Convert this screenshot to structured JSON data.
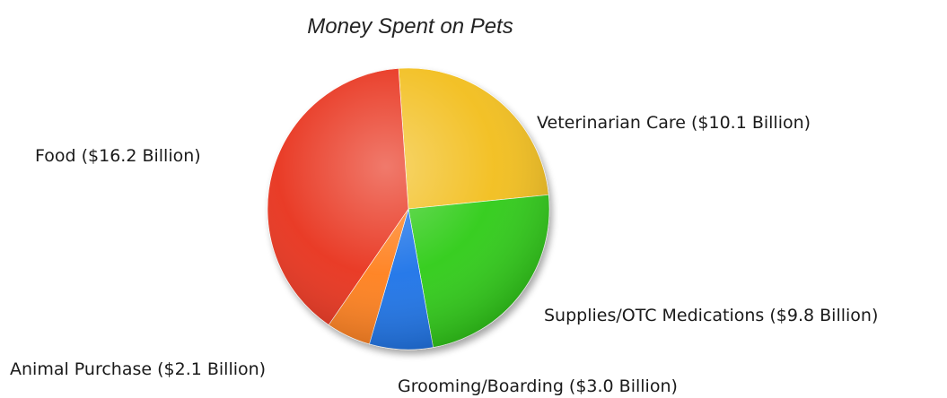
{
  "chart_data": {
    "type": "pie",
    "title": "Money Spent on Pets",
    "slices": [
      {
        "label": "Veterinarian Care ($10.1 Billion)",
        "value": 10.1,
        "color": "#f2be1e"
      },
      {
        "label": "Supplies/OTC Medications ($9.8 Billion)",
        "value": 9.8,
        "color": "#2dcc16"
      },
      {
        "label": "Grooming/Boarding ($3.0 Billion)",
        "value": 3.0,
        "color": "#1a73e8"
      },
      {
        "label": "Animal Purchase ($2.1 Billion)",
        "value": 2.1,
        "color": "#ff7f1a"
      },
      {
        "label": "Food ($16.2 Billion)",
        "value": 16.2,
        "color": "#e8321a"
      }
    ]
  }
}
